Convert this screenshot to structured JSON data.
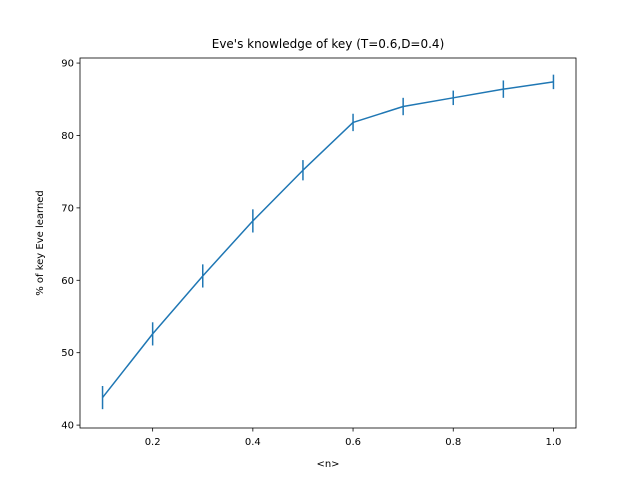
{
  "chart_data": {
    "type": "line",
    "title": "Eve's knowledge of key (T=0.6,D=0.4)",
    "xlabel": "<n>",
    "ylabel": "% of key Eve learned",
    "xlim": [
      0.055,
      1.045
    ],
    "ylim": [
      39.6,
      90.7
    ],
    "xticks": [
      0.2,
      0.4,
      0.6,
      0.8,
      1.0
    ],
    "xtick_labels": [
      "0.2",
      "0.4",
      "0.6",
      "0.8",
      "1.0"
    ],
    "yticks": [
      40,
      50,
      60,
      70,
      80,
      90
    ],
    "ytick_labels": [
      "40",
      "50",
      "60",
      "70",
      "80",
      "90"
    ],
    "grid": false,
    "legend": "none",
    "series": [
      {
        "color": "#1f77b4",
        "x": [
          0.1,
          0.2,
          0.3,
          0.4,
          0.5,
          0.6,
          0.7,
          0.8,
          0.9,
          1.0
        ],
        "y": [
          43.8,
          52.6,
          60.6,
          68.2,
          75.2,
          81.8,
          84.0,
          85.2,
          86.4,
          87.4
        ],
        "err": [
          1.6,
          1.6,
          1.6,
          1.6,
          1.4,
          1.2,
          1.2,
          1.0,
          1.2,
          1.0
        ]
      }
    ]
  }
}
